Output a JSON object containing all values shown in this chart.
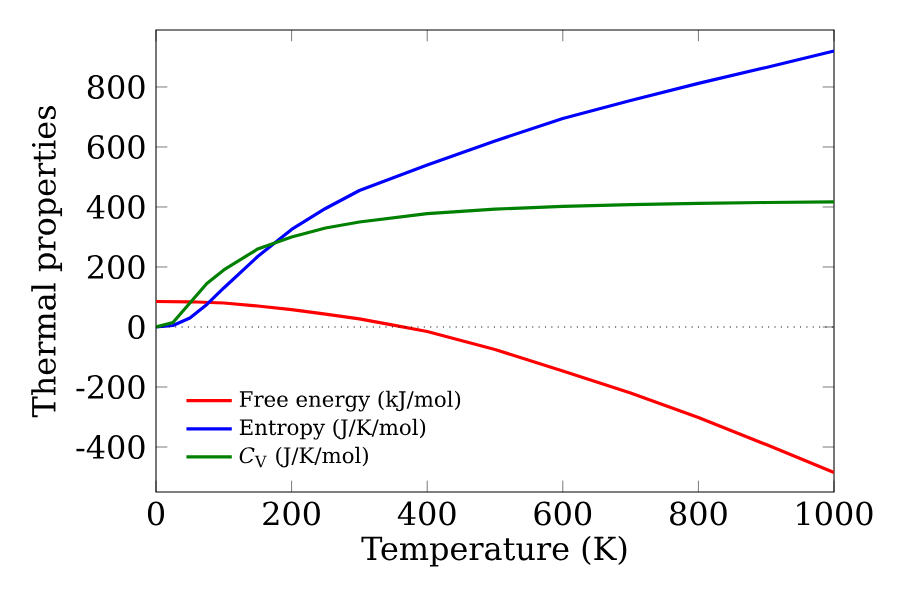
{
  "chart_data": {
    "type": "line",
    "xlabel": "Temperature (K)",
    "ylabel": "Thermal properties",
    "xlim": [
      0,
      1000
    ],
    "ylim": [
      -550,
      990
    ],
    "xticks": [
      0,
      200,
      400,
      600,
      800,
      1000
    ],
    "yticks": [
      -400,
      -200,
      0,
      200,
      400,
      600,
      800
    ],
    "legend": "bottom left",
    "grid": false,
    "marker": "none",
    "line_style": "solid",
    "ref_lines": [
      {
        "axis": "y",
        "value": 0,
        "color": "#000000",
        "line_style": "dotted"
      }
    ],
    "series": [
      {
        "name": "Free energy (kJ/mol)",
        "color": "#ff0000",
        "x": [
          0,
          50,
          100,
          150,
          200,
          250,
          300,
          350,
          400,
          500,
          600,
          700,
          800,
          900,
          1000
        ],
        "values": [
          85,
          84,
          80,
          70,
          58,
          43,
          27,
          6,
          -15,
          -75,
          -147,
          -220,
          -302,
          -392,
          -485
        ]
      },
      {
        "name": "Entropy (J/K/mol)",
        "color": "#0000ff",
        "x": [
          0,
          25,
          50,
          75,
          100,
          150,
          200,
          250,
          300,
          400,
          500,
          600,
          700,
          800,
          900,
          1000
        ],
        "values": [
          0,
          5,
          30,
          75,
          130,
          235,
          325,
          395,
          455,
          540,
          620,
          695,
          755,
          812,
          865,
          920
        ]
      },
      {
        "name": "*C*$_{V}$ (J/K/mol)",
        "color": "#008000",
        "x": [
          0,
          25,
          50,
          75,
          100,
          150,
          200,
          250,
          300,
          400,
          500,
          600,
          700,
          800,
          900,
          1000
        ],
        "values": [
          0,
          15,
          80,
          145,
          190,
          260,
          300,
          330,
          350,
          378,
          393,
          402,
          408,
          412,
          415,
          417
        ]
      }
    ]
  }
}
